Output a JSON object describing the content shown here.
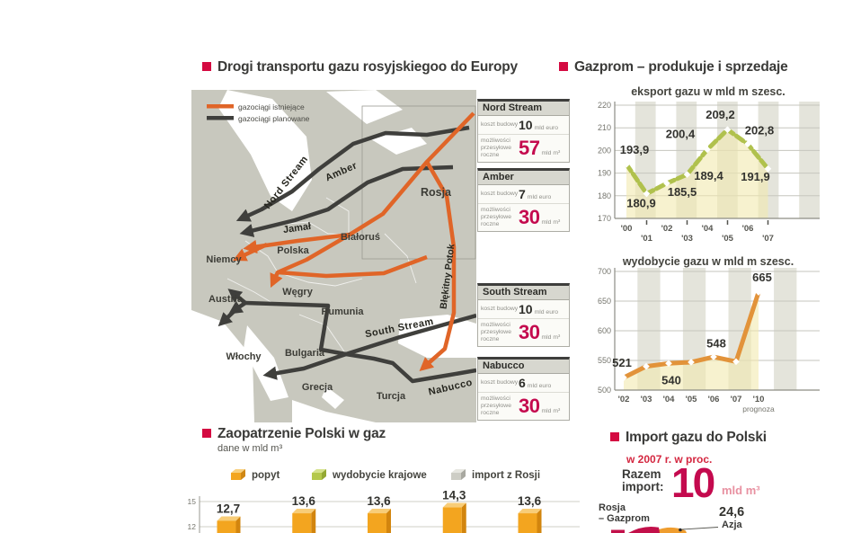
{
  "map_section": {
    "title": "Drogi transportu gazu rosyjskiegoo do Europy",
    "legend": {
      "existing": "gazociągi istniejące",
      "planned": "gazociągi planowane",
      "existing_color": "#e06528",
      "planned_color": "#3f3f3c"
    },
    "countries": {
      "rosja": "Rosja",
      "bialorus": "Białoruś",
      "polska": "Polska",
      "niemcy": "Niemcy",
      "austria": "Austria",
      "wegry": "Węgry",
      "rumunia": "Rumunia",
      "wlochy": "Włochy",
      "bulgaria": "Bulgaria",
      "grecja": "Grecja",
      "turcja": "Turcja"
    },
    "pipelines": {
      "nord_stream": "Nord Stream",
      "amber": "Amber",
      "jamal": "Jamał",
      "blekitny_potok": "Błękitny Potok",
      "south_stream": "South Stream",
      "nabucco": "Nabucco"
    },
    "info_boxes": [
      {
        "name": "Nord Stream",
        "cost_label": "koszt budowy",
        "cost": "10",
        "cost_unit": "mld euro",
        "cap_label": "możliwości przesyłowe roczne",
        "cap": "57",
        "cap_unit": "mld m³"
      },
      {
        "name": "Amber",
        "cost_label": "koszt budowy",
        "cost": "7",
        "cost_unit": "mld euro",
        "cap_label": "możliwości przesyłowe roczne",
        "cap": "30",
        "cap_unit": "mld m³"
      },
      {
        "name": "South Stream",
        "cost_label": "koszt budowy",
        "cost": "10",
        "cost_unit": "mld euro",
        "cap_label": "możliwości przesyłowe roczne",
        "cap": "30",
        "cap_unit": "mld m³"
      },
      {
        "name": "Nabucco",
        "cost_label": "koszt budowy",
        "cost": "6",
        "cost_unit": "mld euro",
        "cap_label": "możliwości przesyłowe roczne",
        "cap": "30",
        "cap_unit": "mld m³"
      }
    ]
  },
  "gazprom_section": {
    "title": "Gazprom – produkuje i sprzedaje"
  },
  "poland_section": {
    "title": "Zaopatrzenie Polski w gaz",
    "subtitle": "dane w mld m³"
  },
  "import_section": {
    "title": "Import gazu do Polski",
    "subtitle": "w 2007 r. w proc.",
    "total_label": "Razem import:",
    "total_value": "10",
    "total_unit": "mld m³",
    "slice1_line1": "Rosja",
    "slice1_line2": "– Gazprom",
    "slice2_value": "24,6",
    "slice2_label": "Azja"
  },
  "chart_data": [
    {
      "id": "gazprom-export",
      "type": "line",
      "title": "eksport gazu w mld m szesc.",
      "x": [
        "'00",
        "'01",
        "'02",
        "'03",
        "'04",
        "'05",
        "'06",
        "'07"
      ],
      "values": [
        193.9,
        180.9,
        185.5,
        189.4,
        200.4,
        209.2,
        202.8,
        191.9
      ],
      "labels": [
        "193,9",
        "180,9",
        "185,5",
        "189,4",
        "200,4",
        "209,2",
        "202,8",
        "191,9"
      ],
      "ylim": [
        170,
        220
      ],
      "yticks": [
        170,
        180,
        190,
        200,
        210,
        220
      ],
      "line_color": "#b0c14d",
      "grid": true,
      "legend_position": "none"
    },
    {
      "id": "gazprom-production",
      "type": "line",
      "title": "wydobycie gazu w mld m szesc.",
      "x": [
        "'02",
        "'03",
        "'04",
        "'05",
        "'06",
        "'07",
        "'10"
      ],
      "x_note": "prognoza",
      "values": [
        521,
        540,
        545,
        547,
        556,
        548,
        665
      ],
      "labels": [
        "521",
        "540",
        null,
        null,
        null,
        "548",
        "665"
      ],
      "ylim": [
        500,
        700
      ],
      "yticks": [
        500,
        550,
        600,
        650,
        700
      ],
      "line_color": "#e2933a",
      "grid": true,
      "legend_position": "none"
    },
    {
      "id": "poland-supply",
      "type": "bar",
      "values": [
        12.7,
        13.6,
        13.6,
        14.3,
        13.6
      ],
      "labels": [
        "12,7",
        "13,6",
        "13,6",
        "14,3",
        "13,6"
      ],
      "yticks_visible": [
        15,
        12
      ],
      "legend": [
        {
          "label": "popyt",
          "color": "#f3a51f"
        },
        {
          "label": "wydobycie krajowe",
          "color": "#b4c84b"
        },
        {
          "label": "import z Rosji",
          "color": "#cdcdc5"
        }
      ]
    },
    {
      "id": "gas-import-pie",
      "type": "pie",
      "total": "10 mld m³",
      "slices": [
        {
          "label": "Rosja – Gazprom",
          "color": "#c2104a"
        },
        {
          "label": "Azja",
          "value": 24.6,
          "color": "#ef9d2e"
        }
      ]
    }
  ]
}
